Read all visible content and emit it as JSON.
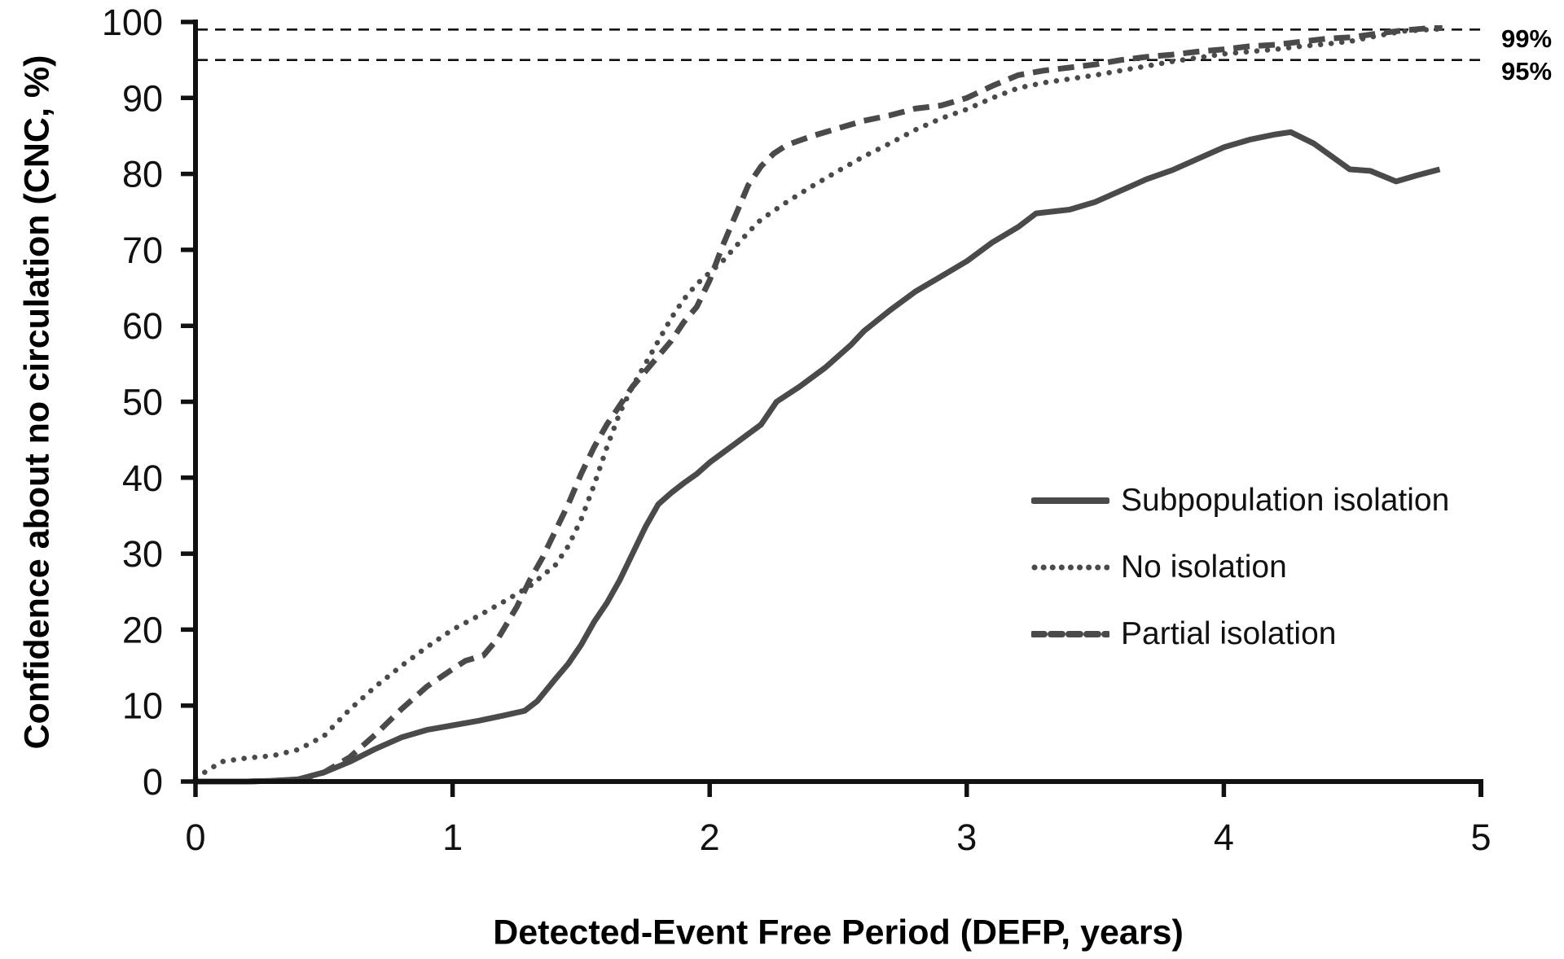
{
  "chart_data": {
    "type": "line",
    "title": "",
    "xlabel": "Detected-Event Free Period (DEFP, years)",
    "ylabel": "Confidence about no circulation (CNC, %)",
    "xlim": [
      0,
      5
    ],
    "ylim": [
      0,
      100
    ],
    "x_ticks": [
      0,
      1,
      2,
      3,
      4,
      5
    ],
    "y_ticks": [
      0,
      10,
      20,
      30,
      40,
      50,
      60,
      70,
      80,
      90,
      100
    ],
    "grid": false,
    "legend_position": "center-right",
    "line_color": "#4a4a4a",
    "axis_color": "#111111",
    "reference_lines": [
      {
        "value": 99,
        "label": "99%"
      },
      {
        "value": 95,
        "label": "95%"
      }
    ],
    "series": [
      {
        "name": "Subpopulation isolation",
        "style": "solid",
        "points": [
          [
            0,
            0
          ],
          [
            0.2,
            0
          ],
          [
            0.3,
            0.1
          ],
          [
            0.4,
            0.3
          ],
          [
            0.5,
            1.2
          ],
          [
            0.6,
            2.6
          ],
          [
            0.7,
            4.3
          ],
          [
            0.8,
            5.8
          ],
          [
            0.9,
            6.8
          ],
          [
            1.0,
            7.4
          ],
          [
            1.1,
            8.0
          ],
          [
            1.2,
            8.7
          ],
          [
            1.28,
            9.3
          ],
          [
            1.33,
            10.6
          ],
          [
            1.4,
            13.5
          ],
          [
            1.45,
            15.5
          ],
          [
            1.5,
            18
          ],
          [
            1.55,
            21
          ],
          [
            1.6,
            23.5
          ],
          [
            1.65,
            26.5
          ],
          [
            1.7,
            30
          ],
          [
            1.75,
            33.5
          ],
          [
            1.8,
            36.5
          ],
          [
            1.85,
            38
          ],
          [
            1.9,
            39.3
          ],
          [
            1.95,
            40.5
          ],
          [
            2.0,
            42
          ],
          [
            2.1,
            44.5
          ],
          [
            2.2,
            47
          ],
          [
            2.26,
            50
          ],
          [
            2.35,
            52
          ],
          [
            2.45,
            54.5
          ],
          [
            2.55,
            57.5
          ],
          [
            2.6,
            59.3
          ],
          [
            2.7,
            62
          ],
          [
            2.8,
            64.5
          ],
          [
            2.9,
            66.5
          ],
          [
            3.0,
            68.5
          ],
          [
            3.1,
            71
          ],
          [
            3.2,
            73
          ],
          [
            3.27,
            74.8
          ],
          [
            3.4,
            75.3
          ],
          [
            3.5,
            76.3
          ],
          [
            3.6,
            77.8
          ],
          [
            3.7,
            79.3
          ],
          [
            3.8,
            80.5
          ],
          [
            3.9,
            82
          ],
          [
            4.0,
            83.5
          ],
          [
            4.1,
            84.5
          ],
          [
            4.2,
            85.2
          ],
          [
            4.26,
            85.5
          ],
          [
            4.35,
            84
          ],
          [
            4.49,
            80.6
          ],
          [
            4.57,
            80.4
          ],
          [
            4.67,
            79
          ],
          [
            4.75,
            79.8
          ],
          [
            4.84,
            80.6
          ]
        ]
      },
      {
        "name": "No isolation",
        "style": "dotted",
        "points": [
          [
            0,
            0.5
          ],
          [
            0.05,
            1.5
          ],
          [
            0.1,
            2.6
          ],
          [
            0.2,
            3.1
          ],
          [
            0.3,
            3.4
          ],
          [
            0.4,
            4.2
          ],
          [
            0.5,
            6.0
          ],
          [
            0.6,
            9.5
          ],
          [
            0.7,
            12.5
          ],
          [
            0.8,
            15.2
          ],
          [
            0.9,
            17.7
          ],
          [
            1.0,
            20
          ],
          [
            1.1,
            21.8
          ],
          [
            1.2,
            23.7
          ],
          [
            1.3,
            25.7
          ],
          [
            1.4,
            28.5
          ],
          [
            1.45,
            31
          ],
          [
            1.5,
            34.5
          ],
          [
            1.55,
            39
          ],
          [
            1.6,
            44
          ],
          [
            1.65,
            48.5
          ],
          [
            1.7,
            52
          ],
          [
            1.75,
            55
          ],
          [
            1.8,
            58
          ],
          [
            1.85,
            61
          ],
          [
            1.9,
            63.5
          ],
          [
            1.95,
            65.5
          ],
          [
            2.0,
            67
          ],
          [
            2.05,
            68.5
          ],
          [
            2.1,
            70.4
          ],
          [
            2.15,
            72.3
          ],
          [
            2.2,
            74
          ],
          [
            2.3,
            76.3
          ],
          [
            2.4,
            78.4
          ],
          [
            2.5,
            80.4
          ],
          [
            2.6,
            82.3
          ],
          [
            2.7,
            84
          ],
          [
            2.8,
            85.8
          ],
          [
            2.9,
            87.3
          ],
          [
            3.0,
            88.5
          ],
          [
            3.1,
            90
          ],
          [
            3.2,
            91.3
          ],
          [
            3.3,
            92
          ],
          [
            3.4,
            92.5
          ],
          [
            3.5,
            93
          ],
          [
            3.6,
            93.6
          ],
          [
            3.7,
            94.2
          ],
          [
            3.8,
            94.8
          ],
          [
            3.9,
            95.3
          ],
          [
            4.0,
            95.8
          ],
          [
            4.1,
            96.1
          ],
          [
            4.2,
            96.4
          ],
          [
            4.3,
            96.8
          ],
          [
            4.4,
            97.1
          ],
          [
            4.5,
            97.5
          ],
          [
            4.6,
            98.2
          ],
          [
            4.7,
            98.8
          ],
          [
            4.8,
            99
          ],
          [
            4.85,
            99.1
          ]
        ]
      },
      {
        "name": "Partial isolation",
        "style": "dashed",
        "points": [
          [
            0,
            0
          ],
          [
            0.2,
            0
          ],
          [
            0.4,
            0.2
          ],
          [
            0.5,
            1.2
          ],
          [
            0.6,
            3.2
          ],
          [
            0.7,
            6.2
          ],
          [
            0.8,
            9.5
          ],
          [
            0.9,
            12.5
          ],
          [
            1.0,
            14.8
          ],
          [
            1.05,
            15.9
          ],
          [
            1.12,
            16.6
          ],
          [
            1.18,
            19
          ],
          [
            1.25,
            23
          ],
          [
            1.3,
            26.5
          ],
          [
            1.35,
            29.5
          ],
          [
            1.4,
            33
          ],
          [
            1.45,
            36.5
          ],
          [
            1.5,
            40.5
          ],
          [
            1.55,
            44
          ],
          [
            1.6,
            47
          ],
          [
            1.65,
            49.5
          ],
          [
            1.7,
            52
          ],
          [
            1.75,
            54
          ],
          [
            1.8,
            56
          ],
          [
            1.85,
            58
          ],
          [
            1.9,
            60.5
          ],
          [
            1.95,
            62.5
          ],
          [
            2.0,
            66
          ],
          [
            2.05,
            70.5
          ],
          [
            2.1,
            74.5
          ],
          [
            2.15,
            78.5
          ],
          [
            2.2,
            81
          ],
          [
            2.25,
            82.7
          ],
          [
            2.3,
            83.8
          ],
          [
            2.4,
            85
          ],
          [
            2.5,
            86
          ],
          [
            2.6,
            87
          ],
          [
            2.7,
            87.7
          ],
          [
            2.8,
            88.6
          ],
          [
            2.9,
            89
          ],
          [
            3.0,
            90
          ],
          [
            3.1,
            91.6
          ],
          [
            3.2,
            93
          ],
          [
            3.3,
            93.6
          ],
          [
            3.4,
            94
          ],
          [
            3.5,
            94.4
          ],
          [
            3.6,
            95.0
          ],
          [
            3.7,
            95.4
          ],
          [
            3.8,
            95.7
          ],
          [
            3.9,
            96.1
          ],
          [
            4.0,
            96.4
          ],
          [
            4.1,
            96.8
          ],
          [
            4.2,
            97
          ],
          [
            4.3,
            97.4
          ],
          [
            4.4,
            97.8
          ],
          [
            4.5,
            98
          ],
          [
            4.6,
            98.5
          ],
          [
            4.7,
            98.9
          ],
          [
            4.8,
            99.2
          ],
          [
            4.85,
            99.2
          ]
        ]
      }
    ]
  }
}
